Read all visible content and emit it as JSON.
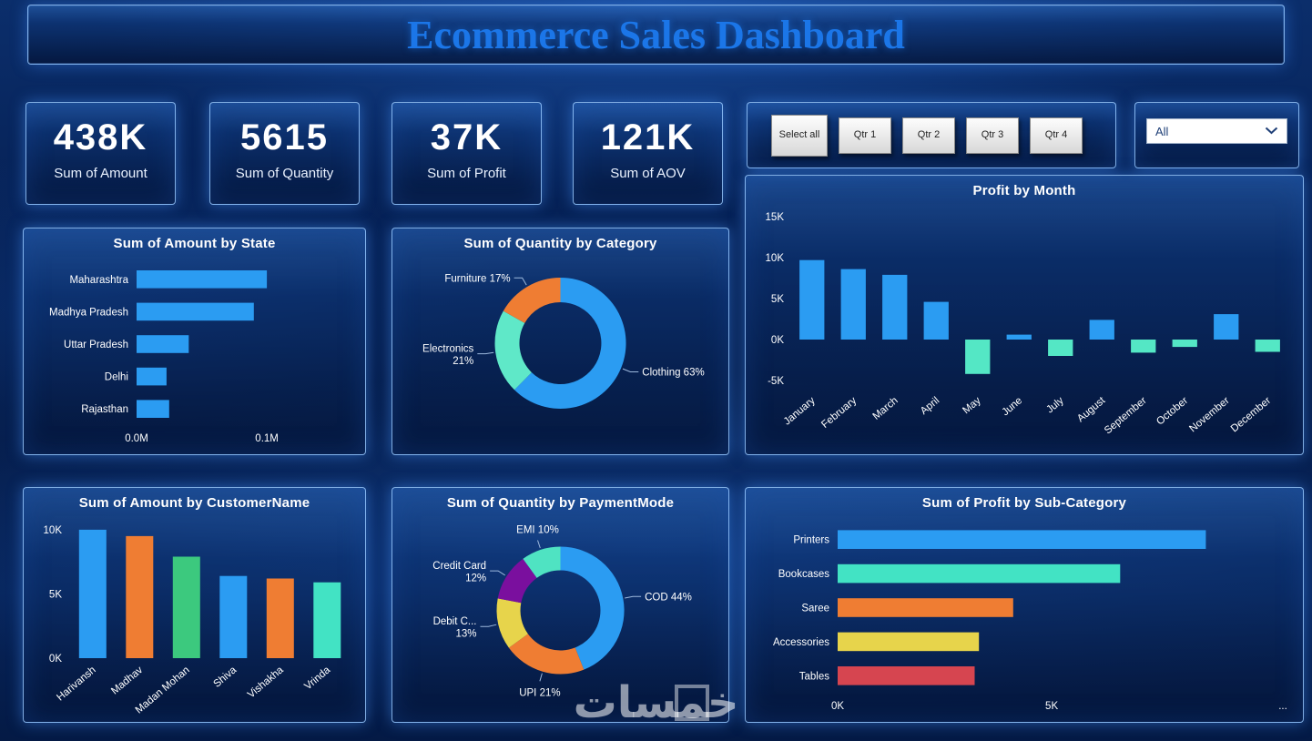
{
  "title": "Ecommerce Sales Dashboard",
  "watermark": "خمسات",
  "kpis": [
    {
      "value": "438K",
      "label": "Sum of Amount"
    },
    {
      "value": "5615",
      "label": "Sum of Quantity"
    },
    {
      "value": "37K",
      "label": "Sum of Profit"
    },
    {
      "value": "121K",
      "label": "Sum of AOV"
    }
  ],
  "slicer": {
    "buttons": [
      "Select all",
      "Qtr 1",
      "Qtr 2",
      "Qtr 3",
      "Qtr 4"
    ]
  },
  "dropdown": {
    "value": "All"
  },
  "colors": {
    "accent": "#1b76e8",
    "positive": "#2b9cf2",
    "negative": "#54e7c5"
  },
  "chart_data": [
    {
      "type": "bar",
      "orientation": "horizontal",
      "title": "Sum of Amount by State",
      "categories": [
        "Maharashtra",
        "Madhya Pradesh",
        "Uttar Pradesh",
        "Delhi",
        "Rajasthan"
      ],
      "values": [
        0.1,
        0.09,
        0.04,
        0.023,
        0.025
      ],
      "unit": "M",
      "xlim": [
        0,
        0.16
      ],
      "xticks": [
        {
          "v": 0,
          "label": "0.0M"
        },
        {
          "v": 0.1,
          "label": "0.1M"
        }
      ],
      "colors": "#2b9cf2",
      "label_width": 118
    },
    {
      "type": "pie",
      "title": "Sum of Quantity by Category",
      "labels": [
        [
          "Clothing 63%"
        ],
        [
          "Electronics",
          "21%"
        ],
        [
          "Furniture 17%"
        ]
      ],
      "values": [
        63,
        21,
        17
      ],
      "colors": [
        "#2b9cf2",
        "#5fe8c8",
        "#ef7d33"
      ],
      "r": 72,
      "ri": 45,
      "dy": -10
    },
    {
      "type": "bar",
      "orientation": "vertical",
      "title": "Profit by Month",
      "categories": [
        "January",
        "February",
        "March",
        "April",
        "May",
        "June",
        "July",
        "August",
        "September",
        "October",
        "November",
        "December"
      ],
      "values": [
        9.7,
        8.6,
        7.9,
        4.6,
        -4.2,
        0.6,
        -2.0,
        2.4,
        -1.6,
        -0.9,
        3.1,
        -1.5
      ],
      "unit": "K",
      "ylim": [
        -6,
        16
      ],
      "yticks": [
        {
          "v": 15,
          "label": "15K"
        },
        {
          "v": 10,
          "label": "10K"
        },
        {
          "v": 5,
          "label": "5K"
        },
        {
          "v": 0,
          "label": "0K"
        },
        {
          "v": -5,
          "label": "-5K"
        }
      ],
      "colors": {
        "positive": "#2b9cf2",
        "negative": "#54e7c5"
      },
      "label_space": 66
    },
    {
      "type": "bar",
      "orientation": "vertical",
      "title": "Sum of Amount by CustomerName",
      "categories": [
        "Harivansh",
        "Madhav",
        "Madan Mohan",
        "Shiva",
        "Vishakha",
        "Vrinda"
      ],
      "values": [
        10.0,
        9.5,
        7.9,
        6.4,
        6.2,
        5.9
      ],
      "unit": "K",
      "ylim": [
        0,
        10.7
      ],
      "yticks": [
        {
          "v": 10,
          "label": "10K"
        },
        {
          "v": 5,
          "label": "5K"
        },
        {
          "v": 0,
          "label": "0K"
        }
      ],
      "colors": [
        "#2b9cf2",
        "#ef7d33",
        "#3cc97e",
        "#2b9cf2",
        "#ef7d33",
        "#42e3c4"
      ],
      "label_space": 64
    },
    {
      "type": "pie",
      "title": "Sum of Quantity by PaymentMode",
      "labels": [
        [
          "COD 44%"
        ],
        [
          "UPI 21%"
        ],
        [
          "Debit C...",
          "13%"
        ],
        [
          "Credit Card",
          "12%"
        ],
        [
          "EMI 10%"
        ]
      ],
      "values": [
        44,
        21,
        13,
        12,
        10
      ],
      "colors": [
        "#2b9cf2",
        "#ef7d33",
        "#e7d44b",
        "#7a0f9e",
        "#4fe3c2"
      ],
      "r": 70,
      "ri": 44,
      "dy": -6
    },
    {
      "type": "bar",
      "orientation": "horizontal",
      "title": "Sum of Profit by Sub-Category",
      "categories": [
        "Printers",
        "Bookcases",
        "Saree",
        "Accessories",
        "Tables"
      ],
      "values": [
        8.6,
        6.6,
        4.1,
        3.3,
        3.2
      ],
      "unit": "K",
      "xlim": [
        0,
        10.4
      ],
      "xticks": [
        {
          "v": 0,
          "label": "0K"
        },
        {
          "v": 5,
          "label": "5K"
        },
        {
          "v": 10.4,
          "label": "..."
        }
      ],
      "colors": [
        "#2b9cf2",
        "#42e3c4",
        "#ef7d33",
        "#e7d44b",
        "#d64550"
      ],
      "label_width": 95
    }
  ]
}
